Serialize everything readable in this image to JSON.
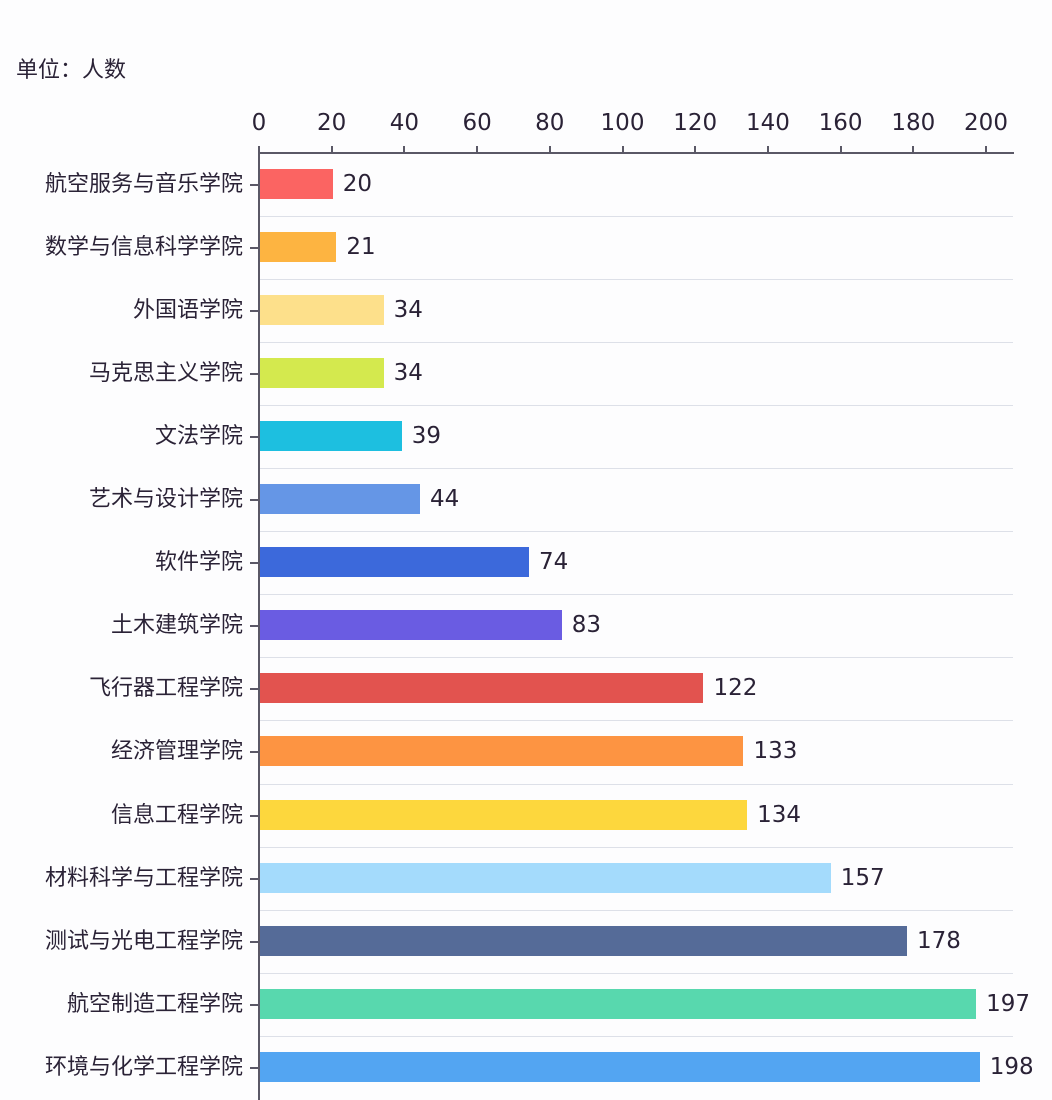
{
  "chart_data": {
    "type": "bar",
    "orientation": "horizontal",
    "title": "",
    "unit_label": "单位：人数",
    "xlabel": "",
    "ylabel": "",
    "xlim": [
      0,
      200
    ],
    "x_ticks": [
      "0",
      "20",
      "40",
      "60",
      "80",
      "100",
      "120",
      "140",
      "160",
      "180",
      "200"
    ],
    "grid": "horizontal row separators",
    "legend": "none",
    "x_axis_position": "top",
    "categories": [
      "航空服务与音乐学院",
      "数学与信息科学学院",
      "外国语学院",
      "马克思主义学院",
      "文法学院",
      "艺术与设计学院",
      "软件学院",
      "土木建筑学院",
      "飞行器工程学院",
      "经济管理学院",
      "信息工程学院",
      "材料科学与工程学院",
      "测试与光电工程学院",
      "航空制造工程学院",
      "环境与化学工程学院"
    ],
    "values": [
      20,
      21,
      34,
      34,
      39,
      44,
      74,
      83,
      122,
      133,
      134,
      157,
      178,
      197,
      198
    ],
    "colors": [
      "#fb6462",
      "#fdb441",
      "#fde08b",
      "#d4e94e",
      "#1dbfe0",
      "#6596e6",
      "#3c69db",
      "#6a5ce2",
      "#e2534f",
      "#fd9442",
      "#fdd73d",
      "#a4dbfc",
      "#556b98",
      "#58d8ae",
      "#53a5f2"
    ],
    "data_labels": [
      "20",
      "21",
      "34",
      "34",
      "39",
      "44",
      "74",
      "83",
      "122",
      "133",
      "134",
      "157",
      "178",
      "197",
      "198"
    ]
  }
}
